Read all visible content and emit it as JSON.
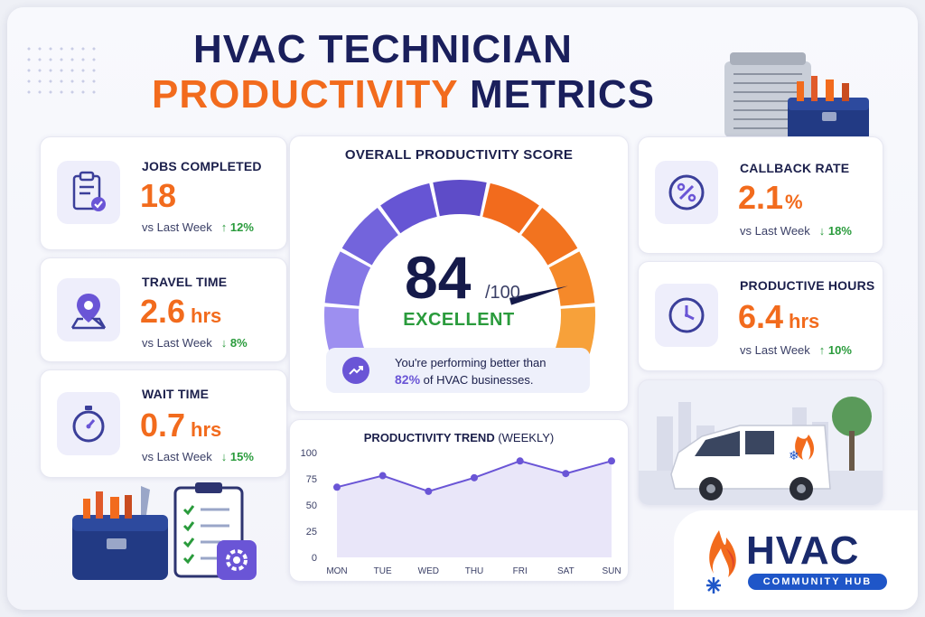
{
  "header": {
    "title_line1": "HVAC TECHNICIAN",
    "title_accent": "PRODUCTIVITY",
    "title_rest": "METRICS"
  },
  "metrics_left": [
    {
      "label": "JOBS COMPLETED",
      "value": "18",
      "unit": "",
      "compare": "vs Last Week",
      "delta": "12%",
      "direction": "up",
      "icon": "clipboard-check-icon"
    },
    {
      "label": "TRAVEL TIME",
      "value": "2.6",
      "unit": "hrs",
      "compare": "vs Last Week",
      "delta": "8%",
      "direction": "down",
      "icon": "map-pin-icon"
    },
    {
      "label": "WAIT TIME",
      "value": "0.7",
      "unit": "hrs",
      "compare": "vs Last Week",
      "delta": "15%",
      "direction": "down",
      "icon": "stopwatch-icon"
    }
  ],
  "metrics_right": [
    {
      "label": "CALLBACK RATE",
      "value": "2.1",
      "unit": "%",
      "compare": "vs Last Week",
      "delta": "18%",
      "direction": "down",
      "icon": "percent-icon"
    },
    {
      "label": "PRODUCTIVE HOURS",
      "value": "6.4",
      "unit": "hrs",
      "compare": "vs Last Week",
      "delta": "10%",
      "direction": "up",
      "icon": "clock-icon"
    }
  ],
  "gauge": {
    "title": "OVERALL PRODUCTIVITY SCORE",
    "score": "84",
    "max": "/100",
    "score_value": 84,
    "score_max": 100,
    "rating": "EXCELLENT",
    "note_line1": "You're performing better than",
    "note_pct": "82%",
    "note_line2": "of HVAC businesses."
  },
  "chart_data": {
    "type": "area",
    "title": "PRODUCTIVITY TREND",
    "subtitle": "(WEEKLY)",
    "categories": [
      "MON",
      "TUE",
      "WED",
      "THU",
      "FRI",
      "SAT",
      "SUN"
    ],
    "values": [
      67,
      78,
      63,
      76,
      92,
      80,
      92
    ],
    "yticks": [
      "100",
      "75",
      "50",
      "25",
      "0"
    ],
    "ylim": [
      0,
      100
    ],
    "grid": false,
    "line_color": "#6a55d6",
    "fill_color": "#e4e0f8"
  },
  "brand": {
    "name": "HVAC",
    "tagline": "COMMUNITY HUB"
  },
  "colors": {
    "accent_orange": "#f26b1d",
    "navy": "#1a1f5c",
    "purple": "#6a55d6",
    "green": "#2a9b3c"
  }
}
